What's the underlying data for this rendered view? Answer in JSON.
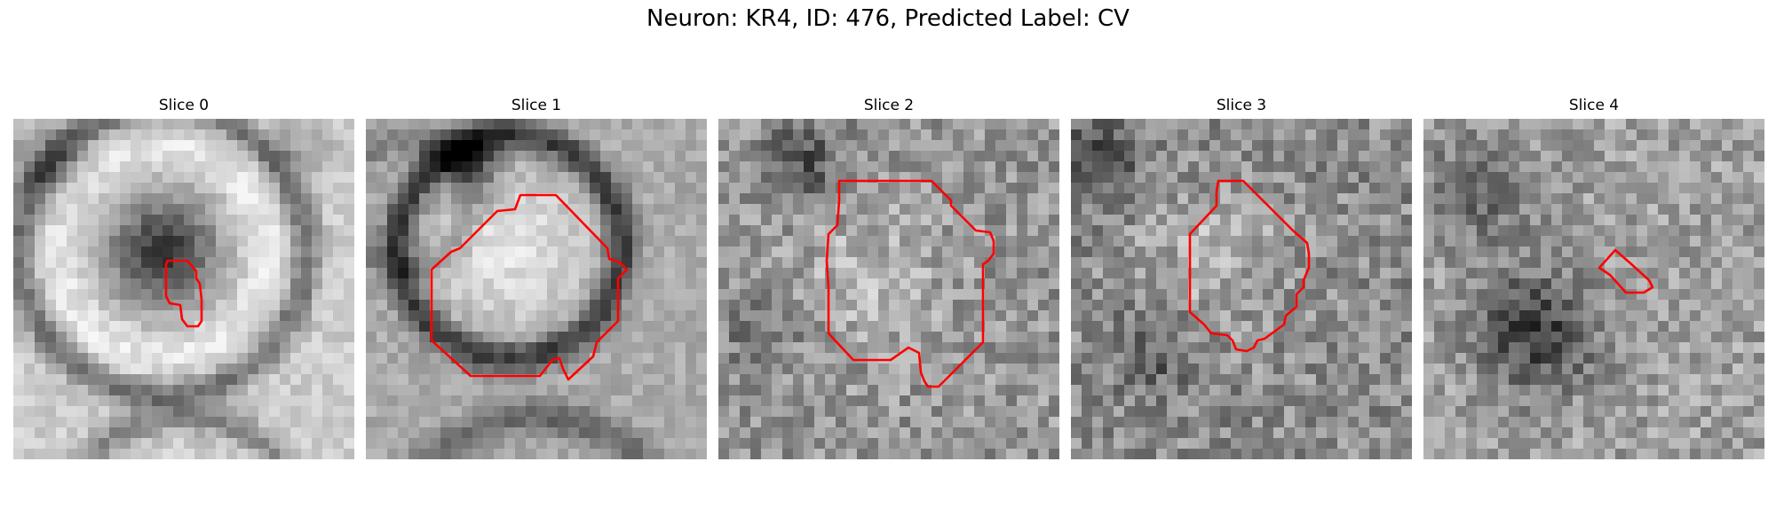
{
  "figure": {
    "title": "Neuron: KR4, ID: 476, Predicted Label: CV",
    "overlay_color": "#ff0000",
    "colormap": "grayscale",
    "slices": [
      {
        "title": "Slice 0"
      },
      {
        "title": "Slice 1"
      },
      {
        "title": "Slice 2"
      },
      {
        "title": "Slice 3"
      },
      {
        "title": "Slice 4"
      }
    ]
  }
}
